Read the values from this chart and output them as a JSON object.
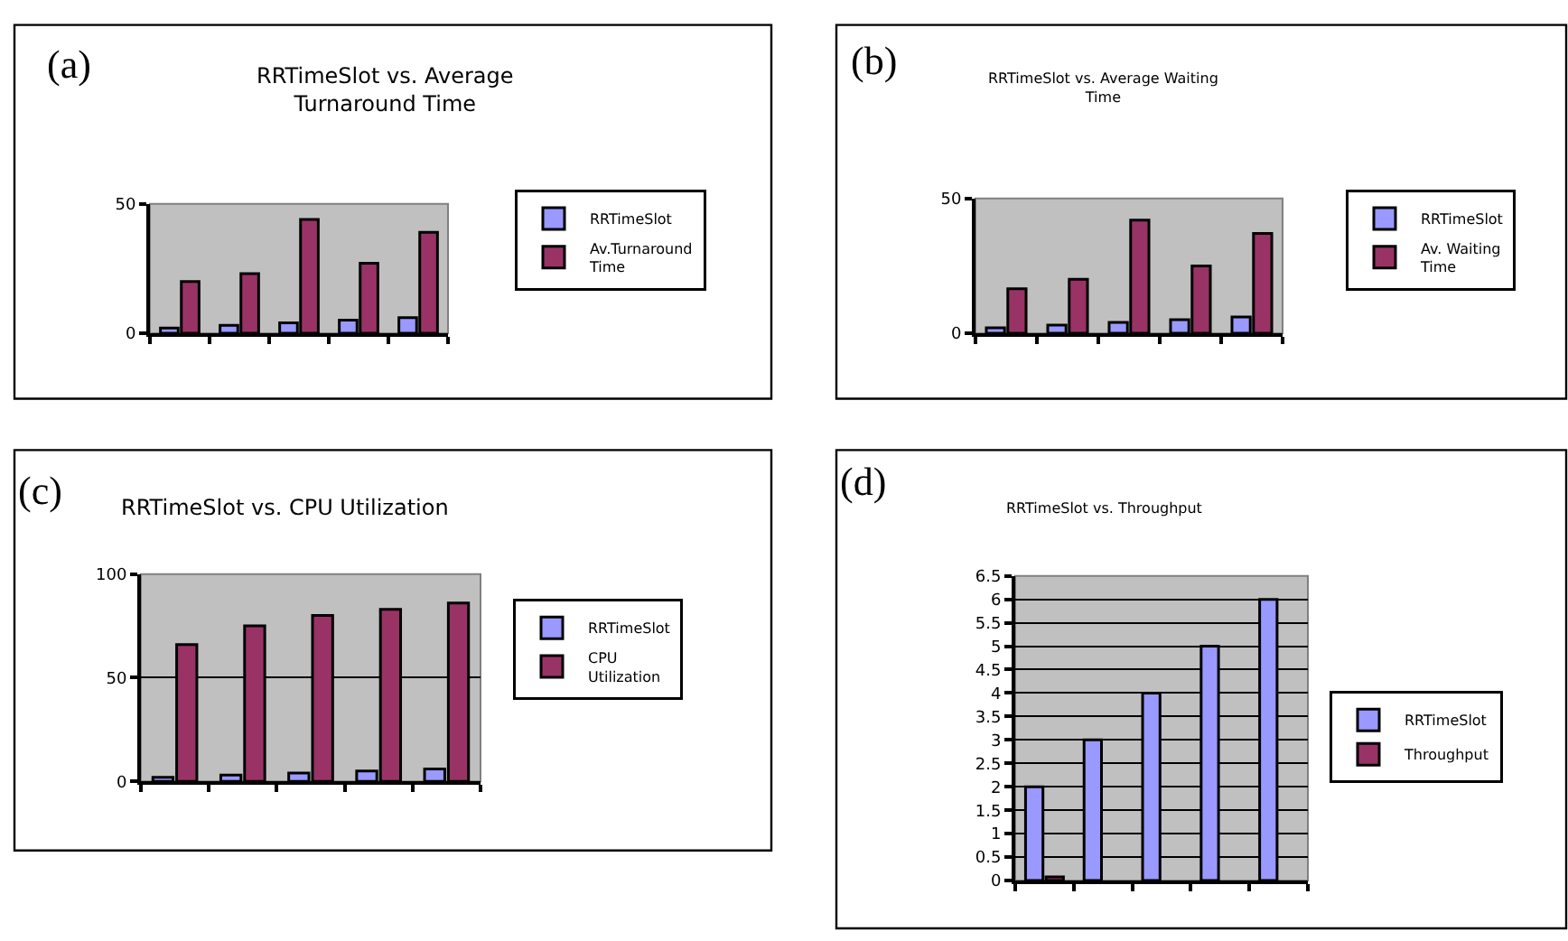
{
  "chart_data": [
    {
      "type": "bar",
      "title": "RRTimeSlot vs. Average Turnaround Time",
      "annotations": [
        "(a)"
      ],
      "categories": [
        null,
        null,
        null,
        null,
        null
      ],
      "series": [
        {
          "name": "RRTimeSlot",
          "color": "#9999ff",
          "values": [
            2,
            3,
            4,
            5,
            6
          ]
        },
        {
          "name": "Av.Turnaround Time",
          "color": "#993366",
          "values": [
            20,
            23,
            44,
            27,
            39
          ]
        }
      ],
      "ylim": [
        0,
        50
      ],
      "yticks": [
        0,
        50
      ],
      "grid": false,
      "legend": "right",
      "tick_labels": "y"
    },
    {
      "type": "bar",
      "title": "RRTimeSlot vs. Average Waiting Time",
      "annotations": [
        "(b)"
      ],
      "categories": [
        null,
        null,
        null,
        null,
        null
      ],
      "series": [
        {
          "name": "RRTimeSlot",
          "color": "#9999ff",
          "values": [
            2,
            3,
            4,
            5,
            6
          ]
        },
        {
          "name": "Av. Waiting Time",
          "color": "#993366",
          "values": [
            16.5,
            20,
            42,
            25,
            37
          ]
        }
      ],
      "ylim": [
        0,
        50
      ],
      "yticks": [
        0,
        50
      ],
      "grid": false,
      "legend": "right",
      "tick_labels": "y"
    },
    {
      "type": "bar",
      "title": "RRTimeSlot vs. CPU Utilization",
      "annotations": [
        "(c)"
      ],
      "categories": [
        null,
        null,
        null,
        null,
        null
      ],
      "series": [
        {
          "name": "RRTimeSlot",
          "color": "#9999ff",
          "values": [
            2,
            3,
            4,
            5,
            6
          ]
        },
        {
          "name": "CPU Utilization",
          "color": "#993366",
          "values": [
            66,
            75,
            80,
            83,
            86
          ]
        }
      ],
      "ylim": [
        0,
        100
      ],
      "yticks": [
        0,
        50,
        100
      ],
      "grid": "y",
      "legend": "right",
      "tick_labels": "y"
    },
    {
      "type": "bar",
      "title": "RRTimeSlot vs. Throughput",
      "annotations": [
        "(d)"
      ],
      "categories": [
        null,
        null,
        null,
        null,
        null
      ],
      "series": [
        {
          "name": "RRTimeSlot",
          "color": "#9999ff",
          "values": [
            2,
            3,
            4,
            5,
            6
          ]
        },
        {
          "name": "Throughput",
          "color": "#993366",
          "values": [
            0.08,
            null,
            null,
            null,
            null
          ]
        }
      ],
      "ylim": [
        0,
        6.5
      ],
      "yticks": [
        0,
        0.5,
        1,
        1.5,
        2,
        2.5,
        3,
        3.5,
        4,
        4.5,
        5,
        5.5,
        6,
        6.5
      ],
      "grid": "y",
      "legend": "right",
      "tick_labels": "y"
    }
  ]
}
